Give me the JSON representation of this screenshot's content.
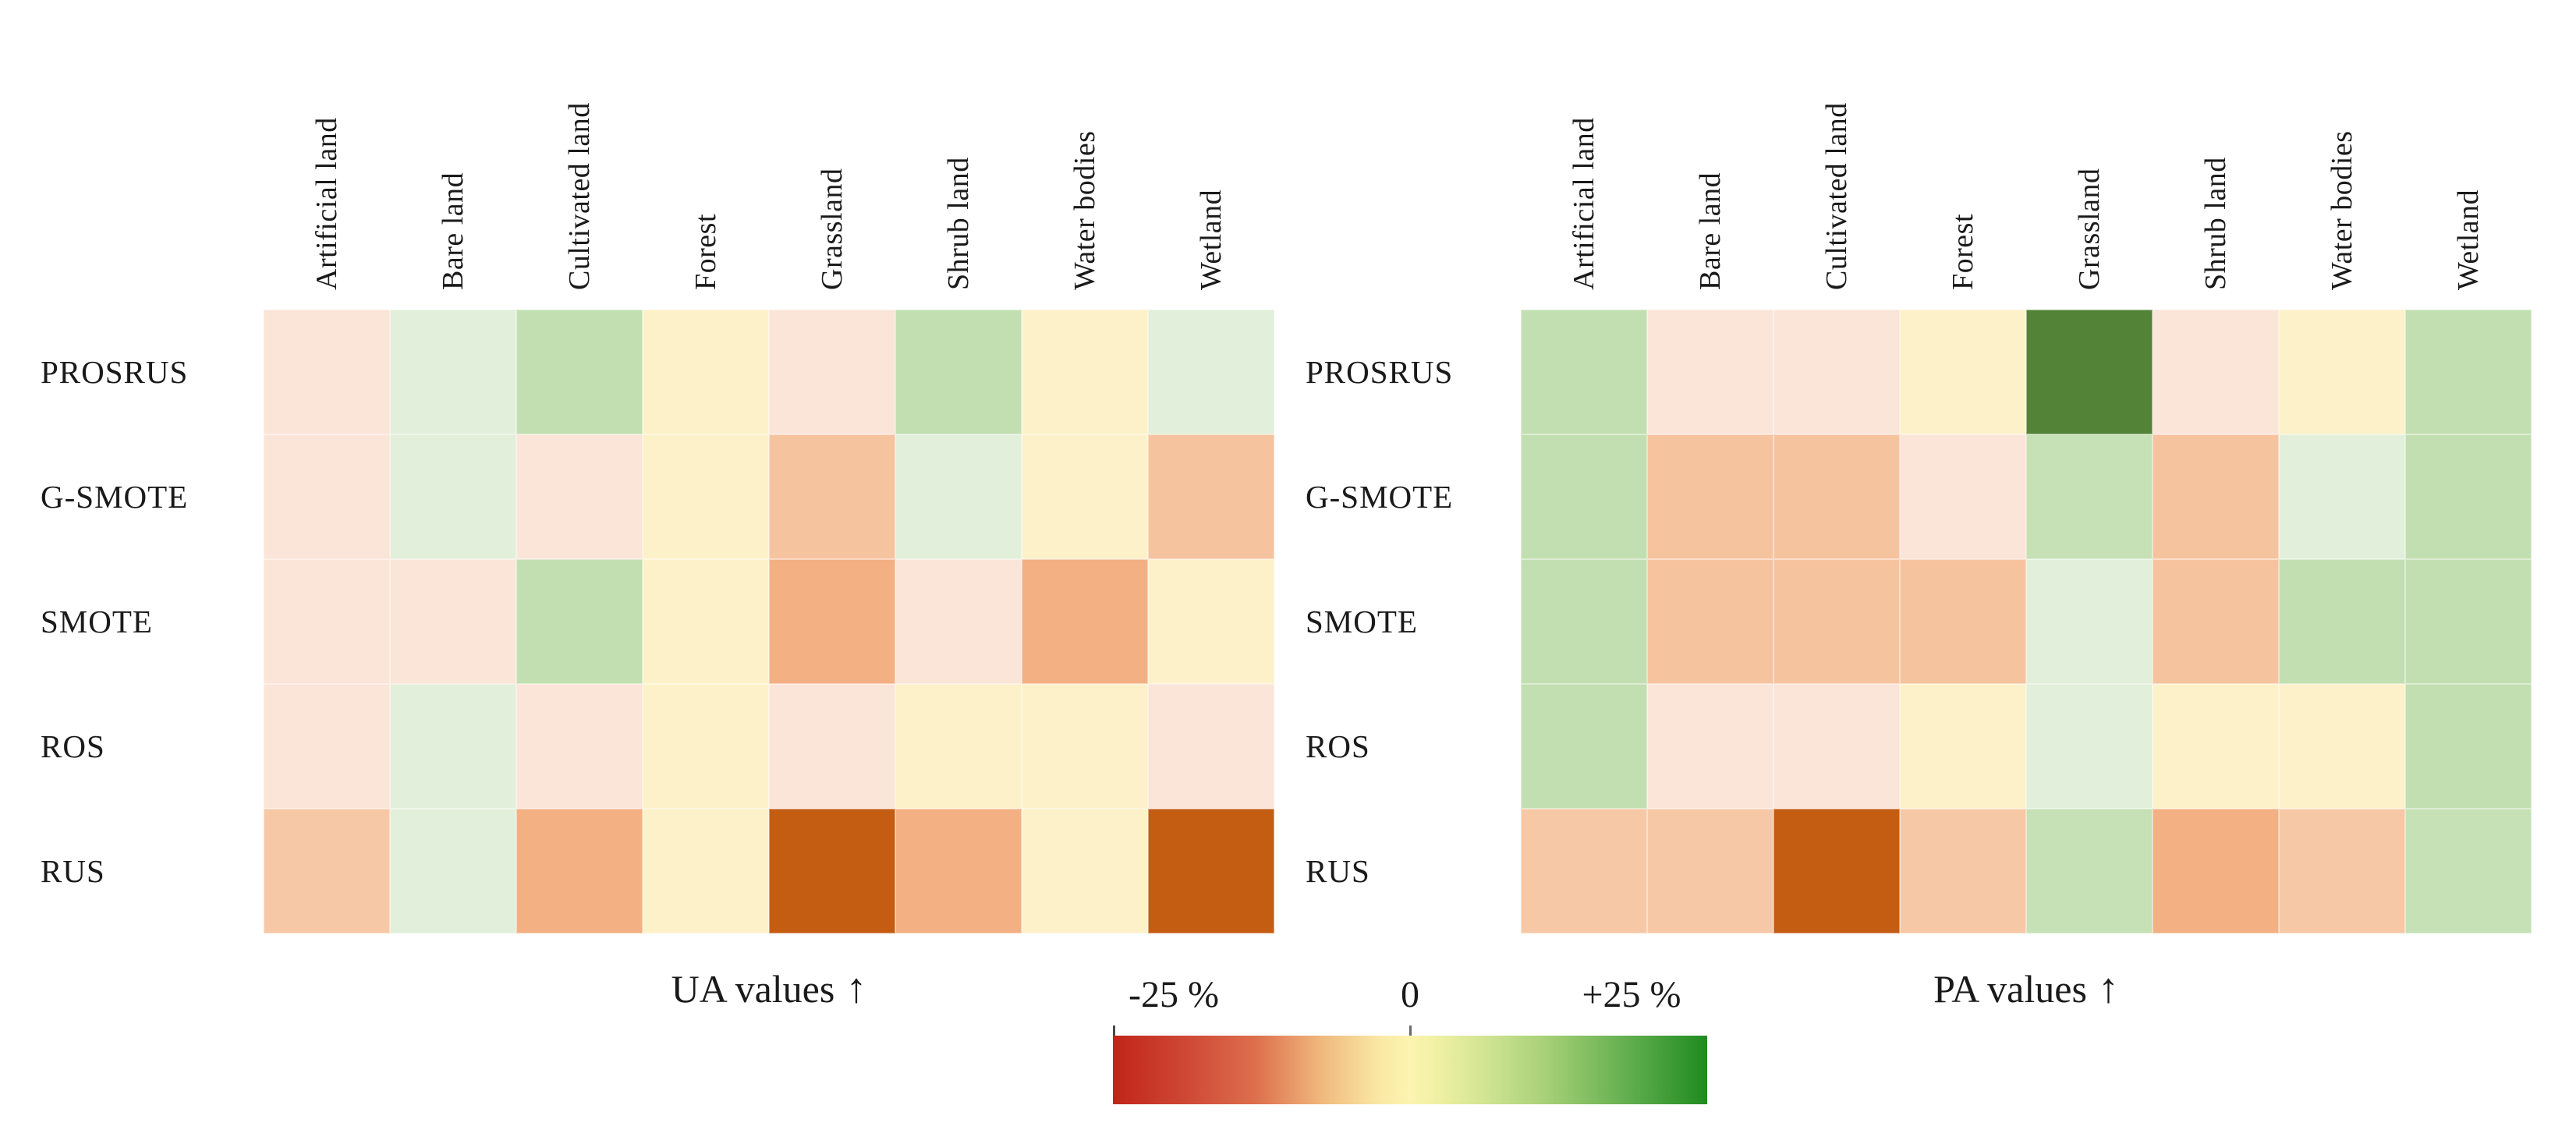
{
  "figure": {
    "left_caption": "UA values",
    "right_caption": "PA values",
    "arrow": "↑",
    "legend": {
      "min_label": "-25 %",
      "zero_label": "0",
      "max_label": "+25 %"
    }
  },
  "chart_data": [
    {
      "type": "heatmap",
      "id": "ua",
      "title": "UA values",
      "x_categories": [
        "Artificial land",
        "Bare land",
        "Cultivated land",
        "Forest",
        "Grassland",
        "Shrub land",
        "Water bodies",
        "Wetland"
      ],
      "y_categories": [
        "PROSRUS",
        "G-SMOTE",
        "SMOTE",
        "ROS",
        "RUS"
      ],
      "values_unit": "percentage points (change in User's Accuracy)",
      "color_scale": {
        "min": -25,
        "mid": 0,
        "max": 25,
        "min_color": "#c1251a",
        "mid_color": "#fcf4b0",
        "max_color": "#1f8b1f"
      },
      "legend_position": "bottom-center",
      "cell_colors": [
        [
          "#fbe4d8",
          "#e2efda",
          "#c2dfb1",
          "#fdf1c9",
          "#fbe4d8",
          "#c2dfb1",
          "#fdf1c9",
          "#e2efda"
        ],
        [
          "#fbe4d8",
          "#e2efda",
          "#fbe4d8",
          "#fdf1c9",
          "#f6c39f",
          "#e2efda",
          "#fdf1c9",
          "#f6c39f"
        ],
        [
          "#fbe4d8",
          "#fbe4d8",
          "#c2dfb1",
          "#fdf1c9",
          "#f3b083",
          "#fbe4d8",
          "#f3b083",
          "#fdf1c9"
        ],
        [
          "#fbe4d8",
          "#e2efda",
          "#fbe4d8",
          "#fdf1c9",
          "#fbe4d8",
          "#fdf1c9",
          "#fdf1c9",
          "#fbe4d8"
        ],
        [
          "#f7c8a5",
          "#e2efda",
          "#f3b083",
          "#fdf1c9",
          "#c45c12",
          "#f3b083",
          "#fdf1c9",
          "#c45c12"
        ]
      ],
      "approx_values": [
        [
          -3,
          3,
          8,
          0,
          -3,
          8,
          0,
          3
        ],
        [
          -3,
          3,
          -3,
          0,
          -8,
          3,
          0,
          -8
        ],
        [
          -3,
          -3,
          8,
          0,
          -11,
          -3,
          -11,
          0
        ],
        [
          -3,
          3,
          -3,
          0,
          -3,
          0,
          0,
          -3
        ],
        [
          -7,
          3,
          -11,
          0,
          -21,
          -11,
          0,
          -21
        ]
      ]
    },
    {
      "type": "heatmap",
      "id": "pa",
      "title": "PA values",
      "x_categories": [
        "Artificial land",
        "Bare land",
        "Cultivated land",
        "Forest",
        "Grassland",
        "Shrub land",
        "Water bodies",
        "Wetland"
      ],
      "y_categories": [
        "PROSRUS",
        "G-SMOTE",
        "SMOTE",
        "ROS",
        "RUS"
      ],
      "values_unit": "percentage points (change in Producer's Accuracy)",
      "color_scale": {
        "min": -25,
        "mid": 0,
        "max": 25,
        "min_color": "#c1251a",
        "mid_color": "#fcf4b0",
        "max_color": "#1f8b1f"
      },
      "legend_position": "bottom-center",
      "cell_colors": [
        [
          "#c2dfb1",
          "#fbe4d8",
          "#fbe4d8",
          "#fdf1c9",
          "#538337",
          "#fbe4d8",
          "#fdf1c9",
          "#c2dfb1"
        ],
        [
          "#c2dfb1",
          "#f6c39f",
          "#f6c39f",
          "#fbe4d8",
          "#c6e1b5",
          "#f6c39f",
          "#e2efda",
          "#c2dfb1"
        ],
        [
          "#c2dfb1",
          "#f6c39f",
          "#f6c39f",
          "#f6c39f",
          "#e2efda",
          "#f6c39f",
          "#c2dfb1",
          "#c2dfb1"
        ],
        [
          "#c2dfb1",
          "#fbe4d8",
          "#fbe4d8",
          "#fdf1c9",
          "#e2efda",
          "#fdf1c9",
          "#fdf1c9",
          "#c2dfb1"
        ],
        [
          "#f7c8a5",
          "#f7c8a5",
          "#c45c12",
          "#f7c8a5",
          "#c6e1b5",
          "#f3b083",
          "#f7c8a5",
          "#c6e1b5"
        ]
      ],
      "approx_values": [
        [
          8,
          -3,
          -3,
          0,
          20,
          -3,
          0,
          8
        ],
        [
          8,
          -8,
          -8,
          -3,
          7,
          -8,
          3,
          8
        ],
        [
          8,
          -8,
          -8,
          -8,
          3,
          -8,
          8,
          8
        ],
        [
          8,
          -3,
          -3,
          0,
          3,
          0,
          0,
          8
        ],
        [
          -7,
          -7,
          -21,
          -7,
          7,
          -11,
          -7,
          7
        ]
      ]
    }
  ]
}
